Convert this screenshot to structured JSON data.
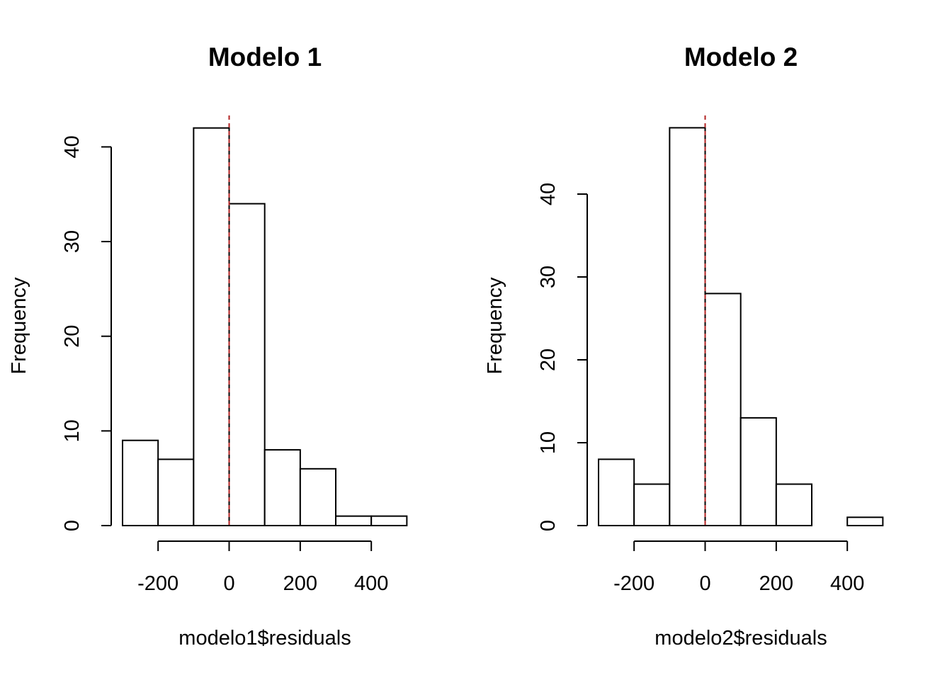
{
  "chart_data": [
    {
      "type": "bar",
      "title": "Modelo 1",
      "xlabel": "modelo1$residuals",
      "ylabel": "Frequency",
      "bin_edges": [
        -300,
        -200,
        -100,
        0,
        100,
        200,
        300,
        400,
        500
      ],
      "values": [
        9,
        7,
        42,
        34,
        8,
        6,
        1,
        1
      ],
      "x_ticks": [
        -200,
        0,
        200,
        400
      ],
      "y_ticks": [
        0,
        10,
        20,
        30,
        40
      ],
      "x_tick_labels": [
        "-200",
        "0",
        "200",
        "400"
      ],
      "y_tick_labels": [
        "0",
        "10",
        "20",
        "30",
        "40"
      ],
      "reference_line": {
        "x": 0,
        "color": "#b22222",
        "style": "dashed"
      },
      "grid": false,
      "legend": "none"
    },
    {
      "type": "bar",
      "title": "Modelo 2",
      "xlabel": "modelo2$residuals",
      "ylabel": "Frequency",
      "bin_edges": [
        -300,
        -200,
        -100,
        0,
        100,
        200,
        300,
        400,
        500
      ],
      "values": [
        8,
        5,
        48,
        28,
        13,
        5,
        0,
        1
      ],
      "x_ticks": [
        -200,
        0,
        200,
        400
      ],
      "y_ticks": [
        0,
        10,
        20,
        30,
        40
      ],
      "x_tick_labels": [
        "-200",
        "0",
        "200",
        "400"
      ],
      "y_tick_labels": [
        "0",
        "10",
        "20",
        "30",
        "40"
      ],
      "reference_line": {
        "x": 0,
        "color": "#b22222",
        "style": "dashed"
      },
      "grid": false,
      "legend": "none"
    }
  ]
}
